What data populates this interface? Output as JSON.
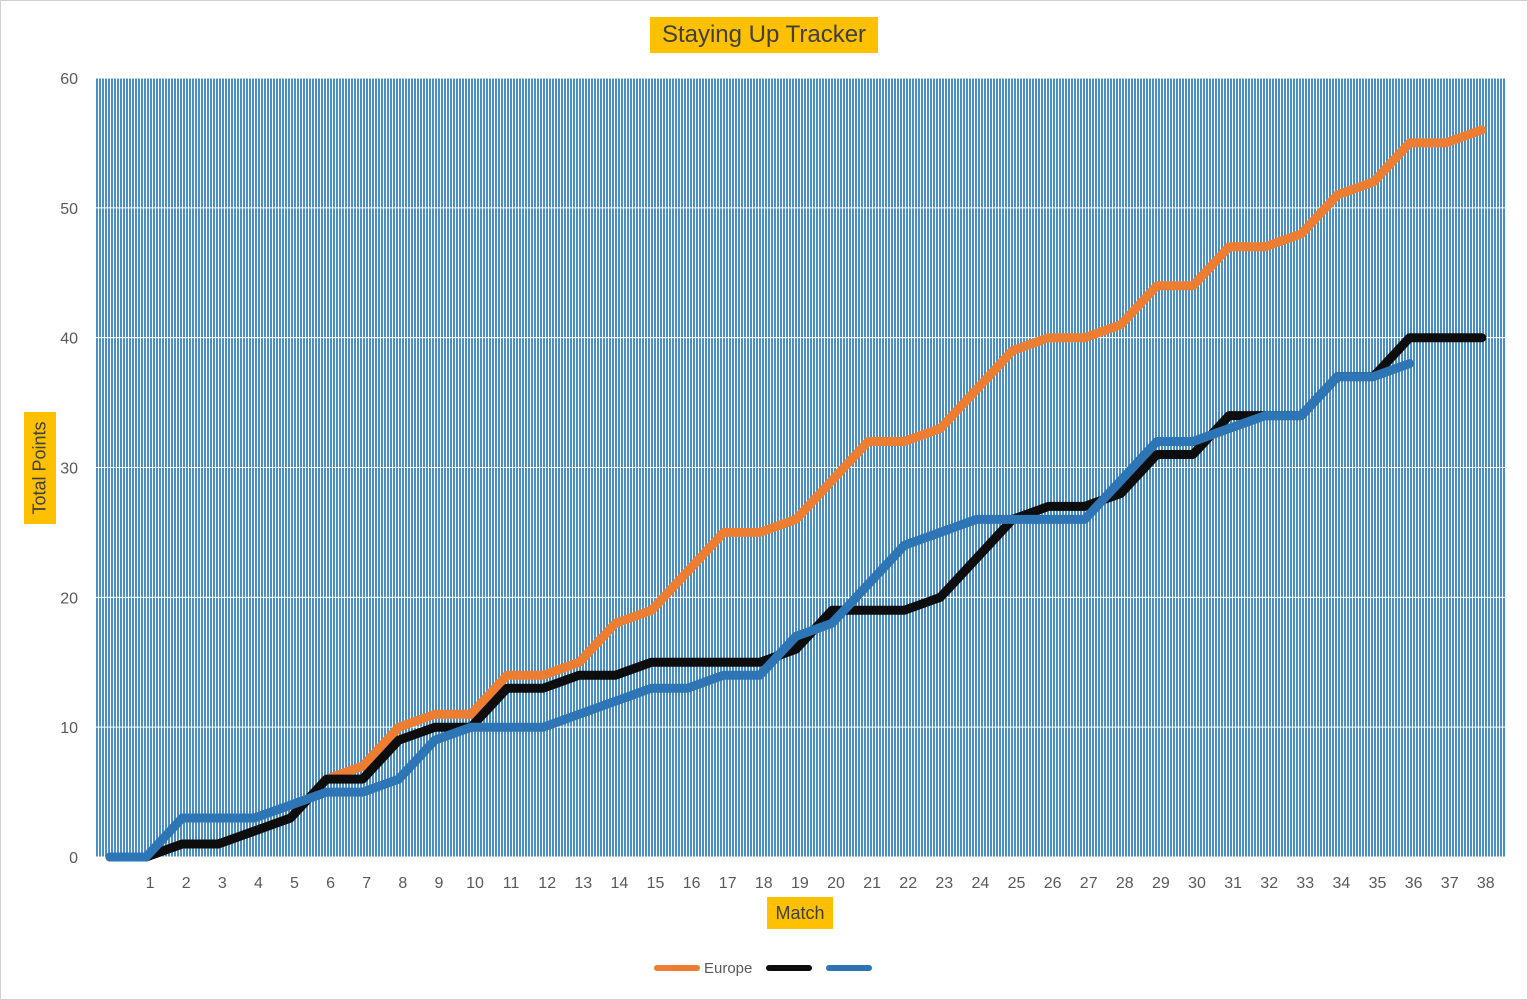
{
  "chart_data": {
    "type": "line",
    "title": "Staying Up Tracker",
    "xlabel": "Match",
    "ylabel": "Total Points",
    "ylim": [
      0,
      60
    ],
    "y_ticks": [
      "0",
      "10",
      "20",
      "30",
      "40",
      "50",
      "60"
    ],
    "categories": [
      "",
      "1",
      "2",
      "3",
      "4",
      "5",
      "6",
      "7",
      "8",
      "9",
      "10",
      "11",
      "12",
      "13",
      "14",
      "15",
      "16",
      "17",
      "18",
      "19",
      "20",
      "21",
      "22",
      "23",
      "24",
      "25",
      "26",
      "27",
      "28",
      "29",
      "30",
      "31",
      "32",
      "33",
      "34",
      "35",
      "36",
      "37",
      "38"
    ],
    "grid": true,
    "plot_fill": "vertical blue hatch",
    "legend_position": "bottom",
    "series": [
      {
        "name": "Europe",
        "color": "#ed7d31",
        "values": [
          0,
          0,
          1,
          1,
          2,
          3,
          6,
          7,
          10,
          11,
          11,
          14,
          14,
          15,
          18,
          19,
          22,
          25,
          25,
          26,
          29,
          32,
          32,
          33,
          36,
          39,
          40,
          40,
          41,
          44,
          44,
          47,
          47,
          48,
          51,
          52,
          55,
          55,
          56
        ]
      },
      {
        "name": "",
        "color": "#0d0d0d",
        "values": [
          0,
          0,
          1,
          1,
          2,
          3,
          6,
          6,
          9,
          10,
          10,
          13,
          13,
          14,
          14,
          15,
          15,
          15,
          15,
          16,
          19,
          19,
          19,
          20,
          23,
          26,
          27,
          27,
          28,
          31,
          31,
          34,
          34,
          34,
          37,
          37,
          40,
          40,
          40
        ]
      },
      {
        "name": "",
        "color": "#2e75b6",
        "values": [
          0,
          0,
          3,
          3,
          3,
          4,
          5,
          5,
          6,
          9,
          10,
          10,
          10,
          11,
          12,
          13,
          13,
          14,
          14,
          17,
          18,
          21,
          24,
          25,
          26,
          26,
          26,
          26,
          29,
          32,
          32,
          33,
          34,
          34,
          37,
          37,
          38,
          null,
          null
        ]
      }
    ]
  }
}
